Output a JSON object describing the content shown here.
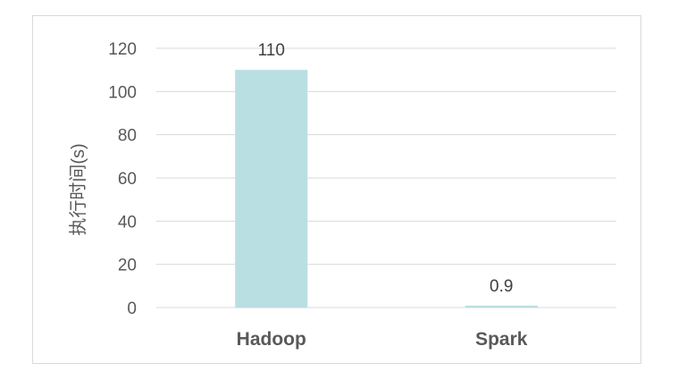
{
  "chart_data": {
    "type": "bar",
    "categories": [
      "Hadoop",
      "Spark"
    ],
    "values": [
      110,
      0.9
    ],
    "data_labels": [
      "110",
      "0.9"
    ],
    "title": "",
    "xlabel": "",
    "ylabel": "执行时间(s)",
    "ylim": [
      0,
      120
    ],
    "yticks": [
      "0",
      "20",
      "40",
      "60",
      "80",
      "100",
      "120"
    ],
    "grid": true,
    "legend": "none",
    "bar_color": "#b9dfe2",
    "grid_color": "#d9d9d9",
    "text_color": "#595959"
  }
}
